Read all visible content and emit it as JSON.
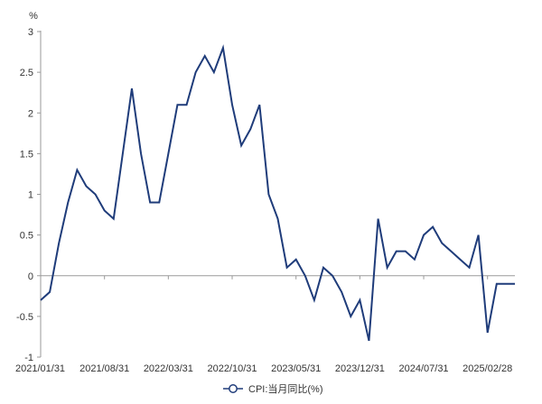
{
  "chart_data": {
    "type": "line",
    "title": "",
    "xlabel": "",
    "ylabel": "%",
    "ylim": [
      -1,
      3
    ],
    "yticks": [
      -1,
      -0.5,
      0,
      0.5,
      1,
      1.5,
      2,
      2.5,
      3
    ],
    "ytick_labels": [
      "-1",
      "-0.5",
      "0",
      "0.5",
      "1",
      "1.5",
      "2",
      "2.5",
      "3"
    ],
    "xtick_labels": [
      "2021/01/31",
      "2021/08/31",
      "2022/03/31",
      "2022/10/31",
      "2023/05/31",
      "2023/12/31",
      "2024/07/31",
      "2025/02/28"
    ],
    "xtick_indices": [
      0,
      7,
      14,
      21,
      28,
      35,
      42,
      49
    ],
    "grid": false,
    "legend": "bottom",
    "x": [
      "2021/01/31",
      "2021/02/28",
      "2021/03/31",
      "2021/04/30",
      "2021/05/31",
      "2021/06/30",
      "2021/07/31",
      "2021/08/31",
      "2021/09/30",
      "2021/10/31",
      "2021/11/30",
      "2021/12/31",
      "2022/01/31",
      "2022/02/28",
      "2022/03/31",
      "2022/04/30",
      "2022/05/31",
      "2022/06/30",
      "2022/07/31",
      "2022/08/31",
      "2022/09/30",
      "2022/10/31",
      "2022/11/30",
      "2022/12/31",
      "2023/01/31",
      "2023/02/28",
      "2023/03/31",
      "2023/04/30",
      "2023/05/31",
      "2023/06/30",
      "2023/07/31",
      "2023/08/31",
      "2023/09/30",
      "2023/10/31",
      "2023/11/30",
      "2023/12/31",
      "2024/01/31",
      "2024/02/29",
      "2024/03/31",
      "2024/04/30",
      "2024/05/31",
      "2024/06/30",
      "2024/07/31",
      "2024/08/31",
      "2024/09/30",
      "2024/10/31",
      "2024/11/30",
      "2024/12/31",
      "2025/01/31",
      "2025/02/28",
      "2025/03/31",
      "2025/04/30",
      "2025/05/31"
    ],
    "series": [
      {
        "name": "CPI:当月同比(%)",
        "color": "#1f3c7a",
        "values": [
          -0.3,
          -0.2,
          0.4,
          0.9,
          1.3,
          1.1,
          1.0,
          0.8,
          0.7,
          1.5,
          2.3,
          1.5,
          0.9,
          0.9,
          1.5,
          2.1,
          2.1,
          2.5,
          2.7,
          2.5,
          2.8,
          2.1,
          1.6,
          1.8,
          2.1,
          1.0,
          0.7,
          0.1,
          0.2,
          0.0,
          -0.3,
          0.1,
          0.0,
          -0.2,
          -0.5,
          -0.3,
          -0.8,
          0.7,
          0.1,
          0.3,
          0.3,
          0.2,
          0.5,
          0.6,
          0.4,
          0.3,
          0.2,
          0.1,
          0.5,
          -0.7,
          -0.1,
          -0.1,
          -0.1
        ]
      }
    ]
  }
}
